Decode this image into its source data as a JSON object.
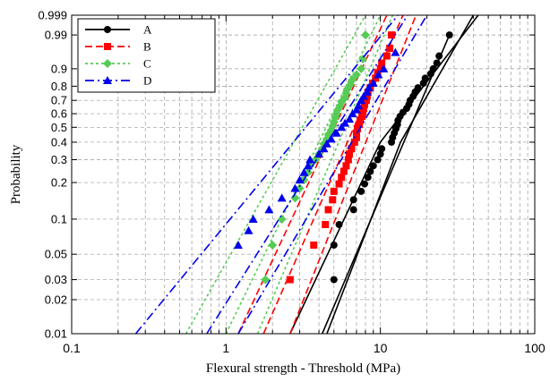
{
  "chart_data": {
    "type": "scatter",
    "title": "",
    "xlabel": "Flexural strength - Threshold (MPa)",
    "ylabel": "Probability",
    "x_scale": "log",
    "y_scale": "weibull-probability",
    "xlim": [
      0.1,
      100
    ],
    "ylim": [
      0.01,
      0.999
    ],
    "x_ticks": [
      0.1,
      1,
      10,
      100
    ],
    "x_tick_labels": [
      "0.1",
      "1",
      "10",
      "100"
    ],
    "y_ticks": [
      0.01,
      0.02,
      0.03,
      0.05,
      0.1,
      0.2,
      0.3,
      0.4,
      0.5,
      0.6,
      0.7,
      0.8,
      0.9,
      0.99,
      0.999
    ],
    "y_tick_labels": [
      "0.01",
      "0.02",
      "0.03",
      "0.05",
      "0.1",
      "0.2",
      "0.3",
      "0.4",
      "0.5",
      "0.6",
      "0.7",
      "0.8",
      "0.9",
      "0.99",
      "0.999"
    ],
    "grid": true,
    "legend_position": "top-left",
    "series": [
      {
        "name": "A",
        "color": "#000000",
        "marker": "circle",
        "line_style": "solid",
        "points": [
          [
            5.0,
            0.03
          ],
          [
            5.0,
            0.06
          ],
          [
            5.4,
            0.09
          ],
          [
            6.7,
            0.12
          ],
          [
            6.7,
            0.145
          ],
          [
            7.5,
            0.17
          ],
          [
            7.9,
            0.195
          ],
          [
            8.3,
            0.22
          ],
          [
            8.6,
            0.245
          ],
          [
            9.0,
            0.27
          ],
          [
            9.6,
            0.3
          ],
          [
            10.0,
            0.33
          ],
          [
            10.2,
            0.36
          ],
          [
            11.8,
            0.4
          ],
          [
            12.0,
            0.43
          ],
          [
            12.3,
            0.46
          ],
          [
            12.6,
            0.49
          ],
          [
            12.9,
            0.52
          ],
          [
            13.0,
            0.55
          ],
          [
            13.4,
            0.58
          ],
          [
            14.0,
            0.61
          ],
          [
            14.8,
            0.64
          ],
          [
            15.3,
            0.67
          ],
          [
            15.6,
            0.7
          ],
          [
            16.3,
            0.73
          ],
          [
            16.8,
            0.76
          ],
          [
            17.5,
            0.79
          ],
          [
            19.0,
            0.82
          ],
          [
            19.5,
            0.85
          ],
          [
            21.2,
            0.875
          ],
          [
            22.0,
            0.9
          ],
          [
            23.2,
            0.925
          ],
          [
            24.0,
            0.95
          ],
          [
            28.0,
            0.99
          ]
        ],
        "fit_line": [
          [
            4.2,
            0.01
          ],
          [
            28.0,
            0.99
          ]
        ],
        "confidence_bounds": [
          [
            [
              2.6,
              0.01
            ],
            [
              10.0,
              0.4
            ],
            [
              43.0,
              0.999
            ]
          ],
          [
            [
              4.5,
              0.01
            ],
            [
              13.5,
              0.4
            ],
            [
              40.0,
              0.999
            ]
          ]
        ]
      },
      {
        "name": "B",
        "color": "#ff0000",
        "marker": "square",
        "line_style": "dashed",
        "points": [
          [
            2.6,
            0.03
          ],
          [
            3.7,
            0.06
          ],
          [
            4.4,
            0.09
          ],
          [
            4.6,
            0.12
          ],
          [
            4.9,
            0.145
          ],
          [
            5.0,
            0.17
          ],
          [
            5.4,
            0.195
          ],
          [
            5.6,
            0.22
          ],
          [
            5.8,
            0.245
          ],
          [
            6.0,
            0.27
          ],
          [
            6.2,
            0.3
          ],
          [
            6.3,
            0.33
          ],
          [
            6.5,
            0.36
          ],
          [
            6.8,
            0.4
          ],
          [
            7.0,
            0.43
          ],
          [
            7.0,
            0.46
          ],
          [
            7.1,
            0.49
          ],
          [
            7.3,
            0.52
          ],
          [
            7.4,
            0.55
          ],
          [
            7.6,
            0.58
          ],
          [
            7.7,
            0.61
          ],
          [
            7.8,
            0.64
          ],
          [
            7.9,
            0.67
          ],
          [
            8.1,
            0.7
          ],
          [
            8.2,
            0.73
          ],
          [
            8.3,
            0.76
          ],
          [
            8.6,
            0.79
          ],
          [
            8.9,
            0.82
          ],
          [
            9.3,
            0.85
          ],
          [
            9.6,
            0.88
          ],
          [
            10.0,
            0.9
          ],
          [
            10.2,
            0.925
          ],
          [
            11.0,
            0.95
          ],
          [
            11.5,
            0.97
          ],
          [
            11.8,
            0.99
          ]
        ],
        "fit_line": [
          [
            1.75,
            0.01
          ],
          [
            14.0,
            0.999
          ]
        ],
        "confidence_bounds": [
          [
            [
              1.2,
              0.01
            ],
            [
              11.0,
              0.999
            ]
          ],
          [
            [
              2.6,
              0.01
            ],
            [
              17.0,
              0.999
            ]
          ]
        ]
      },
      {
        "name": "C",
        "color": "#55cc55",
        "marker": "diamond",
        "line_style": "dotted",
        "points": [
          [
            1.8,
            0.03
          ],
          [
            2.0,
            0.06
          ],
          [
            2.3,
            0.1
          ],
          [
            2.8,
            0.15
          ],
          [
            3.0,
            0.18
          ],
          [
            3.2,
            0.21
          ],
          [
            3.4,
            0.24
          ],
          [
            3.5,
            0.27
          ],
          [
            3.8,
            0.3
          ],
          [
            4.0,
            0.33
          ],
          [
            4.2,
            0.36
          ],
          [
            4.3,
            0.39
          ],
          [
            4.5,
            0.42
          ],
          [
            4.6,
            0.45
          ],
          [
            4.8,
            0.48
          ],
          [
            4.9,
            0.51
          ],
          [
            5.0,
            0.54
          ],
          [
            5.1,
            0.57
          ],
          [
            5.2,
            0.6
          ],
          [
            5.3,
            0.63
          ],
          [
            5.5,
            0.66
          ],
          [
            5.6,
            0.69
          ],
          [
            5.9,
            0.72
          ],
          [
            6.0,
            0.75
          ],
          [
            6.1,
            0.78
          ],
          [
            6.4,
            0.81
          ],
          [
            6.6,
            0.84
          ],
          [
            7.0,
            0.87
          ],
          [
            7.5,
            0.9
          ],
          [
            7.7,
            0.94
          ],
          [
            8.0,
            0.99
          ]
        ],
        "fit_line": [
          [
            1.0,
            0.01
          ],
          [
            10.0,
            0.999
          ]
        ],
        "confidence_bounds": [
          [
            [
              0.55,
              0.01
            ],
            [
              8.0,
              0.999
            ]
          ],
          [
            [
              1.6,
              0.01
            ],
            [
              12.0,
              0.999
            ]
          ]
        ]
      },
      {
        "name": "D",
        "color": "#0000ee",
        "marker": "triangle",
        "line_style": "dashdot",
        "points": [
          [
            1.2,
            0.06
          ],
          [
            1.4,
            0.08
          ],
          [
            1.5,
            0.1
          ],
          [
            1.9,
            0.12
          ],
          [
            2.3,
            0.15
          ],
          [
            2.8,
            0.18
          ],
          [
            3.0,
            0.21
          ],
          [
            3.2,
            0.24
          ],
          [
            3.4,
            0.27
          ],
          [
            3.5,
            0.3
          ],
          [
            4.0,
            0.33
          ],
          [
            4.3,
            0.36
          ],
          [
            4.5,
            0.39
          ],
          [
            4.8,
            0.42
          ],
          [
            5.2,
            0.46
          ],
          [
            5.6,
            0.5
          ],
          [
            5.9,
            0.53
          ],
          [
            6.3,
            0.56
          ],
          [
            6.6,
            0.6
          ],
          [
            7.0,
            0.63
          ],
          [
            7.2,
            0.66
          ],
          [
            7.5,
            0.7
          ],
          [
            7.8,
            0.73
          ],
          [
            8.2,
            0.76
          ],
          [
            8.4,
            0.79
          ],
          [
            9.0,
            0.82
          ],
          [
            9.7,
            0.87
          ],
          [
            10.5,
            0.9
          ],
          [
            12.5,
            0.96
          ]
        ],
        "fit_line": [
          [
            0.75,
            0.01
          ],
          [
            15.0,
            0.999
          ]
        ],
        "confidence_bounds": [
          [
            [
              0.26,
              0.01
            ],
            [
              13.0,
              0.999
            ]
          ],
          [
            [
              1.2,
              0.01
            ],
            [
              20.0,
              0.999
            ]
          ]
        ]
      }
    ]
  }
}
